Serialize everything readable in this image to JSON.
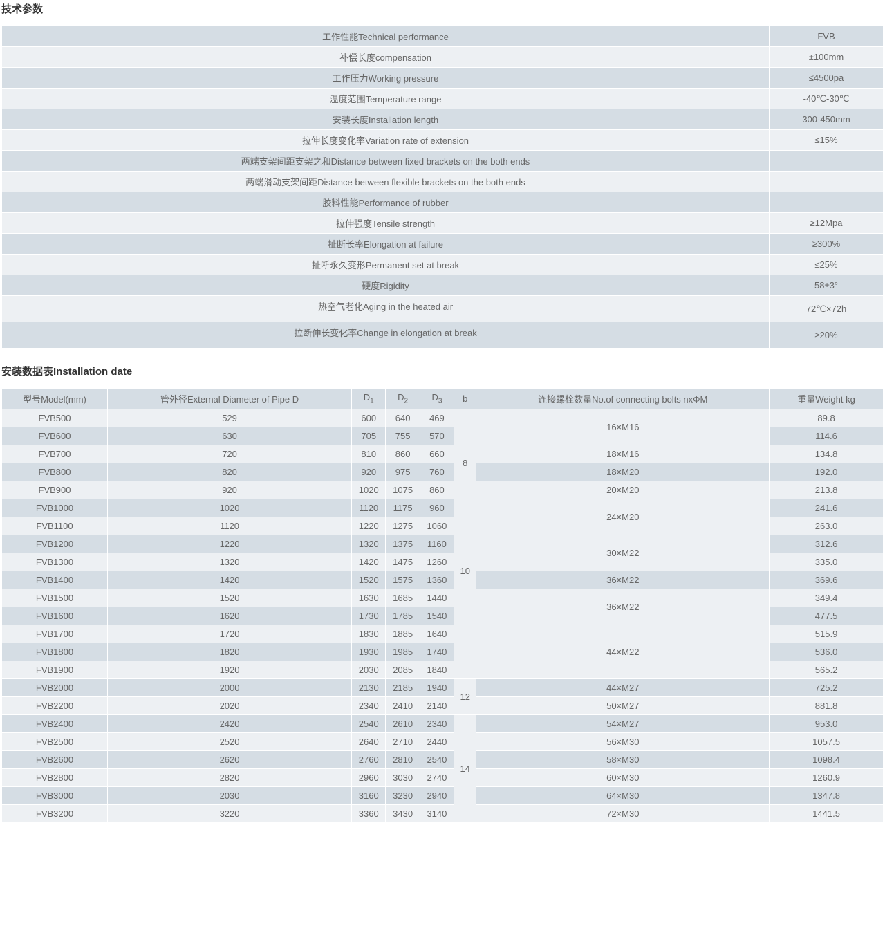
{
  "section1_title": "技术参数",
  "section2_title": "安装数据表Installation date",
  "tech_col_widths": {
    "label": "909px",
    "value": "165px"
  },
  "tech_rows": [
    {
      "label": "工作性能Technical performance",
      "value": "FVB"
    },
    {
      "label": "补偿长度compensation",
      "value": "±100mm"
    },
    {
      "label": "工作压力Working pressure",
      "value": "≤4500pa"
    },
    {
      "label": "温度范围Temperature range",
      "value": "-40℃-30℃"
    },
    {
      "label": "安装长度Installation length",
      "value": "300-450mm"
    },
    {
      "label": "拉伸长度变化率Variation rate of extension",
      "value": "≤15%"
    },
    {
      "label": "两端支架间距支架之和Distance between fixed brackets on the both ends",
      "value": ""
    },
    {
      "label": "两端滑动支架间距Distance between flexible brackets on the both ends",
      "value": ""
    },
    {
      "label": "胶料性能Performance of rubber",
      "value": ""
    },
    {
      "label": "拉伸强度Tensile strength",
      "value": "≥12Mpa"
    },
    {
      "label": "扯断长率Elongation at failure",
      "value": "≥300%"
    },
    {
      "label": "扯断永久变形Permanent set at break",
      "value": "≤25%"
    },
    {
      "label": "硬度Rigidity",
      "value": "58±3°"
    },
    {
      "label": "热空气老化Aging in the heated air",
      "value": "72℃×72h",
      "tall": true
    },
    {
      "label": "拉断伸长变化率Change in elongation at break",
      "value": "≥20%",
      "tall": true
    }
  ],
  "inst_headers": {
    "model": "型号Model(mm)",
    "diam": "管外径External Diameter of Pipe D",
    "d1": "D",
    "d1s": "1",
    "d2": "D",
    "d2s": "2",
    "d3": "D",
    "d3s": "3",
    "b": "b",
    "bolts": "连接螺栓数量No.of connecting bolts nxΦM",
    "weight": "重量Weight kg"
  },
  "col_widths": {
    "model": "130px",
    "diam": "300px",
    "d": "40px",
    "b": "22px",
    "bolts": "360px",
    "weight": "140px"
  },
  "inst_rows": [
    {
      "model": "FVB500",
      "diam": "529",
      "d1": "600",
      "d2": "640",
      "d3": "469",
      "weight": "89.8",
      "b": {
        "txt": "8",
        "span": 6
      },
      "bolts": {
        "txt": "16×M16",
        "span": 2
      }
    },
    {
      "model": "FVB600",
      "diam": "630",
      "d1": "705",
      "d2": "755",
      "d3": "570",
      "weight": "114.6"
    },
    {
      "model": "FVB700",
      "diam": "720",
      "d1": "810",
      "d2": "860",
      "d3": "660",
      "weight": "134.8",
      "bolts": {
        "txt": "18×M16",
        "span": 1
      }
    },
    {
      "model": "FVB800",
      "diam": "820",
      "d1": "920",
      "d2": "975",
      "d3": "760",
      "weight": "192.0",
      "bolts": {
        "txt": "18×M20",
        "span": 1
      }
    },
    {
      "model": "FVB900",
      "diam": "920",
      "d1": "1020",
      "d2": "1075",
      "d3": "860",
      "weight": "213.8",
      "bolts": {
        "txt": "20×M20",
        "span": 1
      }
    },
    {
      "model": "FVB1000",
      "diam": "1020",
      "d1": "1120",
      "d2": "1175",
      "d3": "960",
      "weight": "241.6",
      "bolts": {
        "txt": "24×M20",
        "span": 2
      }
    },
    {
      "model": "FVB1100",
      "diam": "1120",
      "d1": "1220",
      "d2": "1275",
      "d3": "1060",
      "weight": "263.0",
      "b": {
        "txt": "10",
        "span": 6
      }
    },
    {
      "model": "FVB1200",
      "diam": "1220",
      "d1": "1320",
      "d2": "1375",
      "d3": "1160",
      "weight": "312.6",
      "bolts": {
        "txt": "30×M22",
        "span": 2
      }
    },
    {
      "model": "FVB1300",
      "diam": "1320",
      "d1": "1420",
      "d2": "1475",
      "d3": "1260",
      "weight": "335.0"
    },
    {
      "model": "FVB1400",
      "diam": "1420",
      "d1": "1520",
      "d2": "1575",
      "d3": "1360",
      "weight": "369.6",
      "bolts": {
        "txt": "36×M22",
        "span": 1
      }
    },
    {
      "model": "FVB1500",
      "diam": "1520",
      "d1": "1630",
      "d2": "1685",
      "d3": "1440",
      "weight": "349.4",
      "bolts": {
        "txt": "36×M22",
        "span": 2
      }
    },
    {
      "model": "FVB1600",
      "diam": "1620",
      "d1": "1730",
      "d2": "1785",
      "d3": "1540",
      "weight": "477.5"
    },
    {
      "model": "FVB1700",
      "diam": "1720",
      "d1": "1830",
      "d2": "1885",
      "d3": "1640",
      "weight": "515.9",
      "b": {
        "txt": "",
        "span": 3
      },
      "bolts": {
        "txt": "44×M22",
        "span": 3
      }
    },
    {
      "model": "FVB1800",
      "diam": "1820",
      "d1": "1930",
      "d2": "1985",
      "d3": "1740",
      "weight": "536.0"
    },
    {
      "model": "FVB1900",
      "diam": "1920",
      "d1": "2030",
      "d2": "2085",
      "d3": "1840",
      "weight": "565.2"
    },
    {
      "model": "FVB2000",
      "diam": "2000",
      "d1": "2130",
      "d2": "2185",
      "d3": "1940",
      "weight": "725.2",
      "b": {
        "txt": "12",
        "span": 2
      },
      "bolts": {
        "txt": "44×M27",
        "span": 1
      }
    },
    {
      "model": "FVB2200",
      "diam": "2020",
      "d1": "2340",
      "d2": "2410",
      "d3": "2140",
      "weight": "881.8",
      "bolts": {
        "txt": "50×M27",
        "span": 1
      }
    },
    {
      "model": "FVB2400",
      "diam": "2420",
      "d1": "2540",
      "d2": "2610",
      "d3": "2340",
      "weight": "953.0",
      "b": {
        "txt": "14",
        "span": 6
      },
      "bolts": {
        "txt": "54×M27",
        "span": 1
      }
    },
    {
      "model": "FVB2500",
      "diam": "2520",
      "d1": "2640",
      "d2": "2710",
      "d3": "2440",
      "weight": "1057.5",
      "bolts": {
        "txt": "56×M30",
        "span": 1
      }
    },
    {
      "model": "FVB2600",
      "diam": "2620",
      "d1": "2760",
      "d2": "2810",
      "d3": "2540",
      "weight": "1098.4",
      "bolts": {
        "txt": "58×M30",
        "span": 1
      }
    },
    {
      "model": "FVB2800",
      "diam": "2820",
      "d1": "2960",
      "d2": "3030",
      "d3": "2740",
      "weight": "1260.9",
      "bolts": {
        "txt": "60×M30",
        "span": 1
      }
    },
    {
      "model": "FVB3000",
      "diam": "2030",
      "d1": "3160",
      "d2": "3230",
      "d3": "2940",
      "weight": "1347.8",
      "bolts": {
        "txt": "64×M30",
        "span": 1
      }
    },
    {
      "model": "FVB3200",
      "diam": "3220",
      "d1": "3360",
      "d2": "3430",
      "d3": "3140",
      "weight": "1441.5",
      "bolts": {
        "txt": "72×M30",
        "span": 1
      }
    }
  ]
}
